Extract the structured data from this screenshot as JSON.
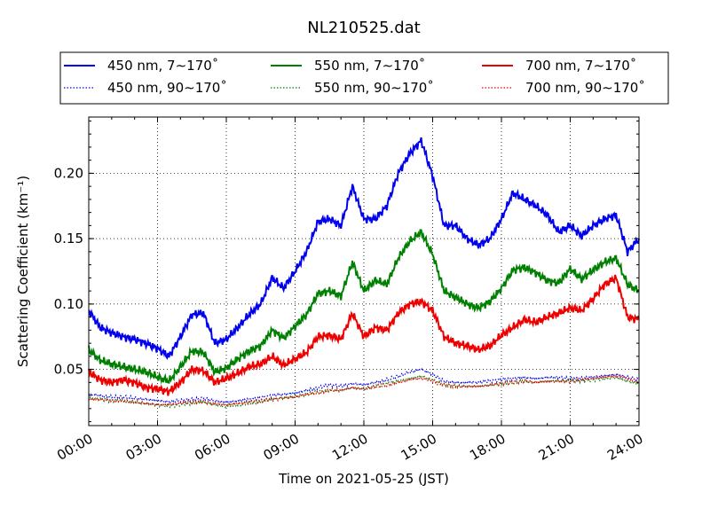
{
  "chart_data": {
    "type": "line",
    "title": "NL210525.dat",
    "xlabel": "Time on 2021-05-25 (JST)",
    "ylabel": "Scattering Coefficient (km⁻¹)",
    "xlim": [
      0,
      24
    ],
    "ylim": [
      0.007,
      0.243
    ],
    "xticks": [
      0,
      3,
      6,
      9,
      12,
      15,
      18,
      21,
      24
    ],
    "xtick_labels": [
      "00:00",
      "03:00",
      "06:00",
      "09:00",
      "12:00",
      "15:00",
      "18:00",
      "21:00",
      "24:00"
    ],
    "yticks": [
      0.05,
      0.1,
      0.15,
      0.2
    ],
    "ytick_labels": [
      "0.05",
      "0.10",
      "0.15",
      "0.20"
    ],
    "grid": true,
    "legend_position": "top",
    "x": [
      0,
      0.5,
      1,
      1.5,
      2,
      2.5,
      3,
      3.5,
      4,
      4.5,
      5,
      5.5,
      6,
      6.5,
      7,
      7.5,
      8,
      8.5,
      9,
      9.5,
      10,
      10.5,
      11,
      11.5,
      12,
      12.5,
      13,
      13.5,
      14,
      14.5,
      15,
      15.5,
      16,
      16.5,
      17,
      17.5,
      18,
      18.5,
      19,
      19.5,
      20,
      20.5,
      21,
      21.5,
      22,
      22.5,
      23,
      23.5,
      24
    ],
    "series": [
      {
        "name": "450 nm, 7∼170˚",
        "color": "#0000ee",
        "style": "solid",
        "values": [
          0.095,
          0.082,
          0.078,
          0.075,
          0.073,
          0.07,
          0.066,
          0.06,
          0.075,
          0.092,
          0.093,
          0.07,
          0.073,
          0.082,
          0.092,
          0.1,
          0.12,
          0.112,
          0.125,
          0.14,
          0.163,
          0.165,
          0.16,
          0.19,
          0.165,
          0.165,
          0.175,
          0.2,
          0.215,
          0.225,
          0.198,
          0.16,
          0.16,
          0.15,
          0.145,
          0.15,
          0.165,
          0.185,
          0.18,
          0.175,
          0.168,
          0.155,
          0.16,
          0.152,
          0.16,
          0.165,
          0.168,
          0.14,
          0.15
        ]
      },
      {
        "name": "550 nm, 7∼170˚",
        "color": "#008000",
        "style": "solid",
        "values": [
          0.065,
          0.057,
          0.054,
          0.052,
          0.05,
          0.048,
          0.044,
          0.041,
          0.052,
          0.064,
          0.063,
          0.048,
          0.051,
          0.058,
          0.064,
          0.068,
          0.08,
          0.074,
          0.083,
          0.092,
          0.108,
          0.11,
          0.106,
          0.132,
          0.11,
          0.118,
          0.115,
          0.135,
          0.148,
          0.155,
          0.138,
          0.11,
          0.105,
          0.1,
          0.097,
          0.102,
          0.112,
          0.126,
          0.128,
          0.124,
          0.118,
          0.116,
          0.127,
          0.119,
          0.126,
          0.132,
          0.135,
          0.115,
          0.11
        ]
      },
      {
        "name": "700 nm, 7∼170˚",
        "color": "#ee0000",
        "style": "solid",
        "values": [
          0.048,
          0.042,
          0.04,
          0.042,
          0.04,
          0.036,
          0.035,
          0.033,
          0.04,
          0.05,
          0.049,
          0.04,
          0.043,
          0.047,
          0.052,
          0.054,
          0.06,
          0.053,
          0.058,
          0.063,
          0.075,
          0.076,
          0.073,
          0.093,
          0.075,
          0.082,
          0.08,
          0.093,
          0.1,
          0.102,
          0.095,
          0.075,
          0.07,
          0.068,
          0.065,
          0.068,
          0.076,
          0.082,
          0.088,
          0.086,
          0.09,
          0.093,
          0.097,
          0.095,
          0.104,
          0.115,
          0.12,
          0.09,
          0.088
        ]
      },
      {
        "name": "450 nm, 90∼170˚",
        "color": "#0000ee",
        "style": "dotted",
        "values": [
          0.031,
          0.03,
          0.029,
          0.029,
          0.028,
          0.027,
          0.026,
          0.025,
          0.026,
          0.027,
          0.028,
          0.026,
          0.025,
          0.026,
          0.027,
          0.028,
          0.03,
          0.031,
          0.032,
          0.034,
          0.036,
          0.038,
          0.037,
          0.039,
          0.038,
          0.04,
          0.042,
          0.045,
          0.048,
          0.05,
          0.046,
          0.041,
          0.04,
          0.04,
          0.04,
          0.041,
          0.042,
          0.043,
          0.044,
          0.043,
          0.044,
          0.044,
          0.043,
          0.043,
          0.044,
          0.045,
          0.046,
          0.044,
          0.042
        ]
      },
      {
        "name": "550 nm, 90∼170˚",
        "color": "#008000",
        "style": "dotted",
        "values": [
          0.028,
          0.027,
          0.026,
          0.026,
          0.025,
          0.024,
          0.023,
          0.022,
          0.023,
          0.024,
          0.025,
          0.023,
          0.022,
          0.023,
          0.024,
          0.025,
          0.027,
          0.028,
          0.029,
          0.031,
          0.033,
          0.034,
          0.034,
          0.036,
          0.035,
          0.037,
          0.039,
          0.041,
          0.043,
          0.045,
          0.042,
          0.038,
          0.037,
          0.037,
          0.037,
          0.038,
          0.039,
          0.04,
          0.041,
          0.04,
          0.041,
          0.041,
          0.041,
          0.041,
          0.042,
          0.043,
          0.044,
          0.041,
          0.039
        ]
      },
      {
        "name": "700 nm, 90∼170˚",
        "color": "#ee0000",
        "style": "dotted",
        "values": [
          0.027,
          0.027,
          0.026,
          0.026,
          0.025,
          0.024,
          0.023,
          0.023,
          0.024,
          0.025,
          0.025,
          0.024,
          0.023,
          0.024,
          0.025,
          0.026,
          0.027,
          0.028,
          0.029,
          0.031,
          0.032,
          0.034,
          0.034,
          0.036,
          0.035,
          0.037,
          0.038,
          0.04,
          0.042,
          0.043,
          0.041,
          0.038,
          0.037,
          0.037,
          0.037,
          0.038,
          0.039,
          0.04,
          0.041,
          0.04,
          0.041,
          0.041,
          0.041,
          0.042,
          0.043,
          0.044,
          0.045,
          0.043,
          0.041
        ]
      }
    ]
  }
}
